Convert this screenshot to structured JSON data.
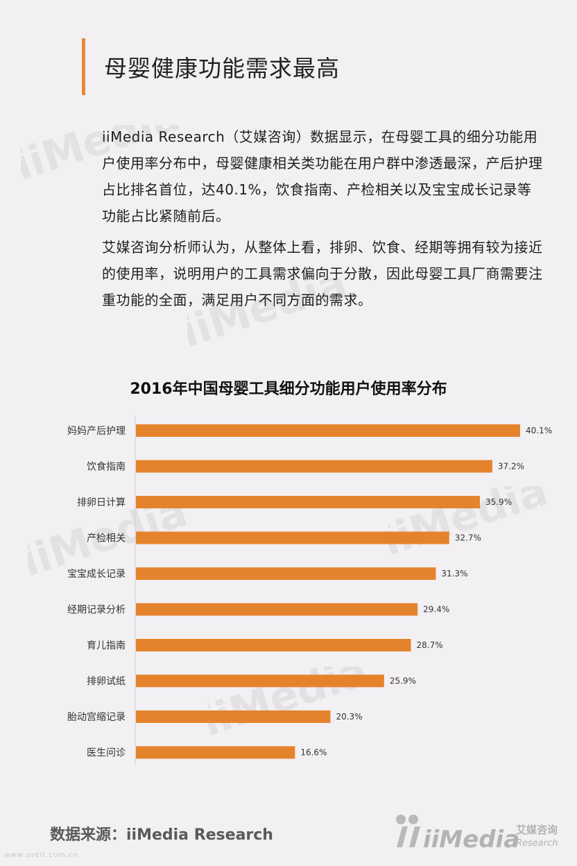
{
  "header": {
    "title": "母婴健康功能需求最高"
  },
  "body": {
    "paragraph1": "iiMedia Research（艾媒咨询）数据显示，在母婴工具的细分功能用户使用率分布中，母婴健康相关类功能在用户群中渗透最深，产后护理占比排名首位，达40.1%，饮食指南、产检相关以及宝宝成长记录等功能占比紧随前后。",
    "paragraph2": "艾媒咨询分析师认为，从整体上看，排卵、饮食、经期等拥有较为接近的使用率，说明用户的工具需求偏向于分散，因此母婴工具厂商需要注重功能的全面，满足用户不同方面的需求。"
  },
  "chart_data": {
    "type": "bar",
    "orientation": "horizontal",
    "title": "2016年中国母婴工具细分功能用户使用率分布",
    "categories": [
      "妈妈产后护理",
      "饮食指南",
      "排卵日计算",
      "产检相关",
      "宝宝成长记录",
      "经期记录分析",
      "育儿指南",
      "排卵试纸",
      "胎动宫缩记录",
      "医生问诊"
    ],
    "values": [
      40.1,
      37.2,
      35.9,
      32.7,
      31.3,
      29.4,
      28.7,
      25.9,
      20.3,
      16.6
    ],
    "value_labels": [
      "40.1%",
      "37.2%",
      "35.9%",
      "32.7%",
      "31.3%",
      "29.4%",
      "28.7%",
      "25.9%",
      "20.3%",
      "16.6%"
    ],
    "unit": "%",
    "bar_color": "#e5832c",
    "grid": false,
    "legend": "none"
  },
  "footer": {
    "source": "数据来源：iiMedia Research",
    "logo_brand": "iiMedia",
    "logo_cn": "艾媒咨询",
    "logo_en": "Research",
    "url": "www.useit.com.cn"
  },
  "colors": {
    "accent": "#e58a3b",
    "background": "#f2f0f3"
  }
}
